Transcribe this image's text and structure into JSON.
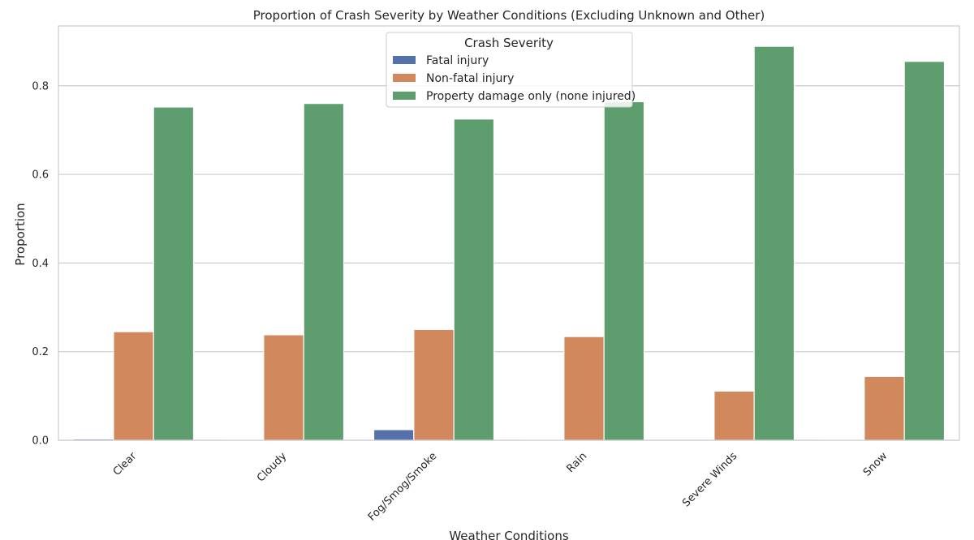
{
  "chart_data": {
    "type": "bar",
    "title": "Proportion of Crash Severity by Weather Conditions (Excluding Unknown and Other)",
    "xlabel": "Weather Conditions",
    "ylabel": "Proportion",
    "categories": [
      "Clear",
      "Cloudy",
      "Fog/Smog/Smoke",
      "Rain",
      "Severe Winds",
      "Snow"
    ],
    "series": [
      {
        "name": "Fatal injury",
        "color": "#5471ab",
        "values": [
          0.003,
          0.002,
          0.024,
          0.002,
          0.0,
          0.001
        ]
      },
      {
        "name": "Non-fatal injury",
        "color": "#d1885c",
        "values": [
          0.245,
          0.238,
          0.25,
          0.234,
          0.111,
          0.144
        ]
      },
      {
        "name": "Property damage only (none injured)",
        "color": "#5e9e6e",
        "values": [
          0.752,
          0.76,
          0.725,
          0.764,
          0.889,
          0.855
        ]
      }
    ],
    "ylim": [
      0,
      0.935
    ],
    "yticks": [
      0.0,
      0.2,
      0.4,
      0.6,
      0.8
    ],
    "ytick_labels": [
      "0.0",
      "0.2",
      "0.4",
      "0.6",
      "0.8"
    ],
    "grid": "horizontal",
    "legend": {
      "title": "Crash Severity",
      "placement": "upper-center"
    }
  }
}
